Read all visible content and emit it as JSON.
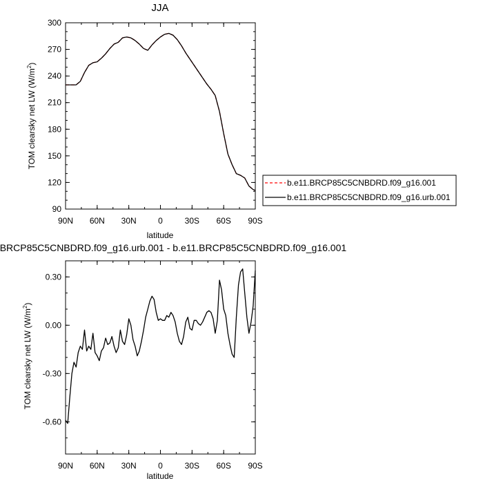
{
  "chart_data": [
    {
      "type": "line",
      "title": "JJA",
      "xlabel": "latitude",
      "ylabel": "TOM clearsky net LW (W/m",
      "ylabel_sup": "2",
      "ylabel_close": ")",
      "xlim": [
        90,
        -90
      ],
      "ylim": [
        90,
        300
      ],
      "xticks": [
        90,
        60,
        30,
        0,
        -30,
        -60,
        -90
      ],
      "xtick_labels": [
        "90N",
        "60N",
        "30N",
        "0",
        "30S",
        "60S",
        "90S"
      ],
      "yticks": [
        90,
        120,
        150,
        180,
        210,
        240,
        270,
        300
      ],
      "ytick_labels": [
        "90",
        "120",
        "150",
        "180",
        "210",
        "240",
        "270",
        "300"
      ],
      "legend_position": "right",
      "series": [
        {
          "name": "b.e11.BRCP85C5CNBDRD.f09_g16.001",
          "color": "#ff0000",
          "style": "dashed",
          "x": [
            90,
            85,
            80,
            76,
            72,
            68,
            64,
            60,
            56,
            52,
            48,
            44,
            40,
            36,
            32,
            28,
            24,
            20,
            16,
            12,
            8,
            4,
            0,
            -4,
            -8,
            -12,
            -16,
            -20,
            -24,
            -28,
            -32,
            -36,
            -40,
            -44,
            -48,
            -52,
            -56,
            -60,
            -64,
            -68,
            -72,
            -76,
            -80,
            -84,
            -88,
            -90
          ],
          "values": [
            230,
            230,
            230,
            234,
            244,
            252,
            255,
            256,
            260,
            265,
            271,
            276,
            278,
            283,
            284,
            283,
            280,
            276,
            271,
            269,
            275,
            280,
            284,
            287,
            288,
            286,
            281,
            274,
            266,
            259,
            252,
            245,
            238,
            231,
            225,
            218,
            200,
            175,
            152,
            140,
            130,
            128,
            125,
            116,
            112,
            111
          ]
        },
        {
          "name": "b.e11.BRCP85C5CNBDRD.f09_g16.urb.001",
          "color": "#000000",
          "style": "solid",
          "x": [
            90,
            85,
            80,
            76,
            72,
            68,
            64,
            60,
            56,
            52,
            48,
            44,
            40,
            36,
            32,
            28,
            24,
            20,
            16,
            12,
            8,
            4,
            0,
            -4,
            -8,
            -12,
            -16,
            -20,
            -24,
            -28,
            -32,
            -36,
            -40,
            -44,
            -48,
            -52,
            -56,
            -60,
            -64,
            -68,
            -72,
            -76,
            -80,
            -84,
            -88,
            -90
          ],
          "values": [
            230,
            230,
            230,
            234,
            244,
            252,
            255,
            256,
            260,
            265,
            271,
            276,
            278,
            283,
            284,
            283,
            280,
            276,
            271,
            269,
            275,
            280,
            284,
            287,
            288,
            286,
            281,
            274,
            266,
            259,
            252,
            245,
            238,
            231,
            225,
            218,
            200,
            175,
            152,
            140,
            130,
            128,
            125,
            116,
            112,
            111
          ]
        }
      ]
    },
    {
      "type": "line",
      "title": "b.e11.BRCP85C5CNBDRD.f09_g16.urb.001 - b.e11.BRCP85C5CNBDRD.f09_g16.001",
      "xlabel": "latitude",
      "ylabel": "TOM clearsky net LW (W/m",
      "ylabel_sup": "2",
      "ylabel_close": ")",
      "xlim": [
        90,
        -90
      ],
      "ylim": [
        -0.8,
        0.4
      ],
      "xticks": [
        90,
        60,
        30,
        0,
        -30,
        -60,
        -90
      ],
      "xtick_labels": [
        "90N",
        "60N",
        "30N",
        "0",
        "30S",
        "60S",
        "90S"
      ],
      "yticks": [
        0.3,
        0.0,
        -0.3,
        -0.6
      ],
      "ytick_labels": [
        "0.30",
        "0.00",
        "-0.30",
        "-0.60"
      ],
      "series": [
        {
          "color": "#000000",
          "style": "solid",
          "x": [
            90,
            88,
            86,
            84,
            82,
            80,
            78,
            76,
            74,
            72,
            70,
            68,
            66,
            64,
            62,
            60,
            58,
            56,
            54,
            52,
            50,
            48,
            46,
            44,
            42,
            40,
            38,
            36,
            34,
            32,
            30,
            28,
            26,
            24,
            22,
            20,
            18,
            16,
            14,
            12,
            10,
            8,
            6,
            4,
            2,
            0,
            -2,
            -4,
            -6,
            -8,
            -10,
            -12,
            -14,
            -16,
            -18,
            -20,
            -22,
            -24,
            -26,
            -28,
            -30,
            -32,
            -34,
            -36,
            -38,
            -40,
            -42,
            -44,
            -46,
            -48,
            -50,
            -52,
            -54,
            -56,
            -58,
            -60,
            -62,
            -64,
            -66,
            -68,
            -70,
            -72,
            -74,
            -76,
            -78,
            -80,
            -82,
            -84,
            -86,
            -88,
            -90
          ],
          "values": [
            -0.59,
            -0.61,
            -0.45,
            -0.3,
            -0.23,
            -0.26,
            -0.17,
            -0.13,
            -0.15,
            -0.03,
            -0.16,
            -0.13,
            -0.15,
            -0.05,
            -0.17,
            -0.19,
            -0.22,
            -0.16,
            -0.14,
            -0.08,
            -0.12,
            -0.11,
            -0.07,
            -0.13,
            -0.17,
            -0.14,
            -0.03,
            -0.1,
            -0.12,
            -0.06,
            0.04,
            0.0,
            -0.09,
            -0.13,
            -0.19,
            -0.16,
            -0.1,
            -0.03,
            0.05,
            0.1,
            0.15,
            0.18,
            0.16,
            0.08,
            0.03,
            0.04,
            0.03,
            0.03,
            0.06,
            0.05,
            0.08,
            0.06,
            0.02,
            -0.05,
            -0.1,
            -0.12,
            -0.07,
            0.02,
            0.05,
            -0.02,
            -0.03,
            0.03,
            0.03,
            0.01,
            0.0,
            0.02,
            0.05,
            0.08,
            0.09,
            0.08,
            0.04,
            -0.05,
            0.03,
            0.28,
            0.22,
            0.1,
            0.06,
            -0.05,
            -0.12,
            -0.18,
            -0.2,
            0.05,
            0.25,
            0.33,
            0.35,
            0.2,
            0.05,
            -0.05,
            0.02,
            0.12,
            0.34
          ]
        }
      ]
    }
  ]
}
